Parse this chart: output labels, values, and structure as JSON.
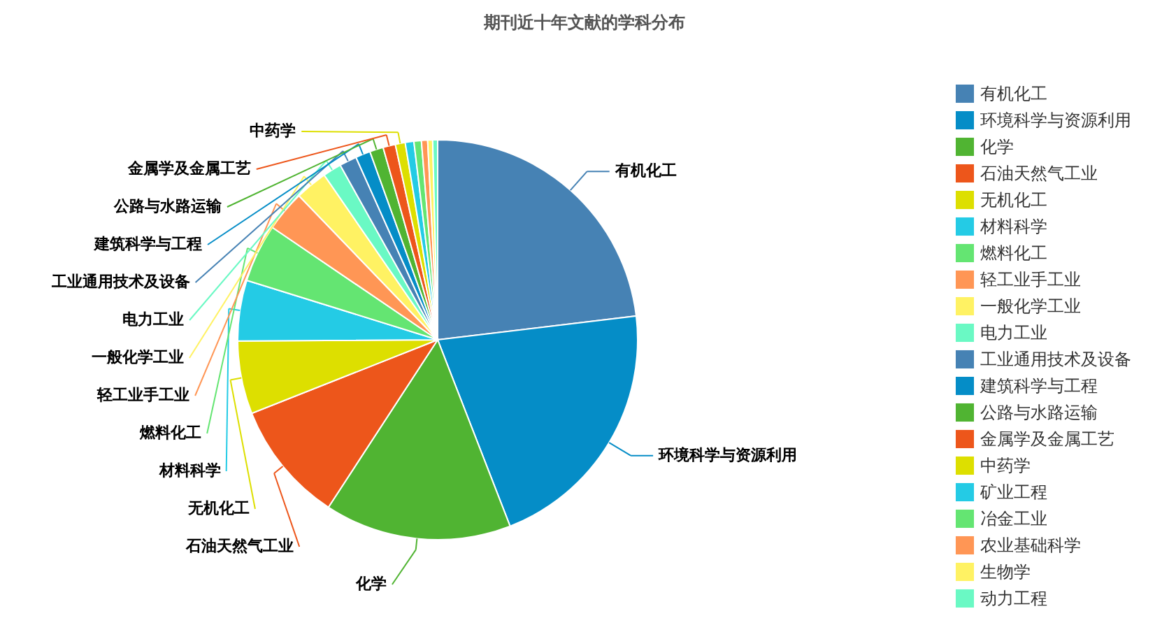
{
  "chart_data": {
    "type": "pie",
    "title": "期刊近十年文献的学科分布",
    "categories": [
      "有机化工",
      "环境科学与资源利用",
      "化学",
      "石油天然气工业",
      "无机化工",
      "材料科学",
      "燃料化工",
      "轻工业手工业",
      "一般化学工业",
      "电力工业",
      "工业通用技术及设备",
      "建筑科学与工程",
      "公路与水路运输",
      "金属学及金属工艺",
      "中药学",
      "矿业工程",
      "冶金工业",
      "农业基础科学",
      "生物学",
      "动力工程"
    ],
    "values": [
      23.1,
      21.0,
      15.1,
      9.8,
      5.9,
      4.9,
      4.7,
      3.3,
      2.6,
      1.5,
      1.4,
      1.2,
      1.1,
      1.0,
      0.8,
      0.7,
      0.6,
      0.5,
      0.4,
      0.4
    ],
    "colors": [
      "#4682b4",
      "#058dc7",
      "#50b432",
      "#ed561b",
      "#dddf00",
      "#24cbe5",
      "#64e572",
      "#ff9655",
      "#fff263",
      "#6af9c4",
      "#4682b4",
      "#058dc7",
      "#50b432",
      "#ed561b",
      "#dddf00",
      "#24cbe5",
      "#64e572",
      "#ff9655",
      "#fff263",
      "#6af9c4"
    ],
    "legend": "right"
  }
}
